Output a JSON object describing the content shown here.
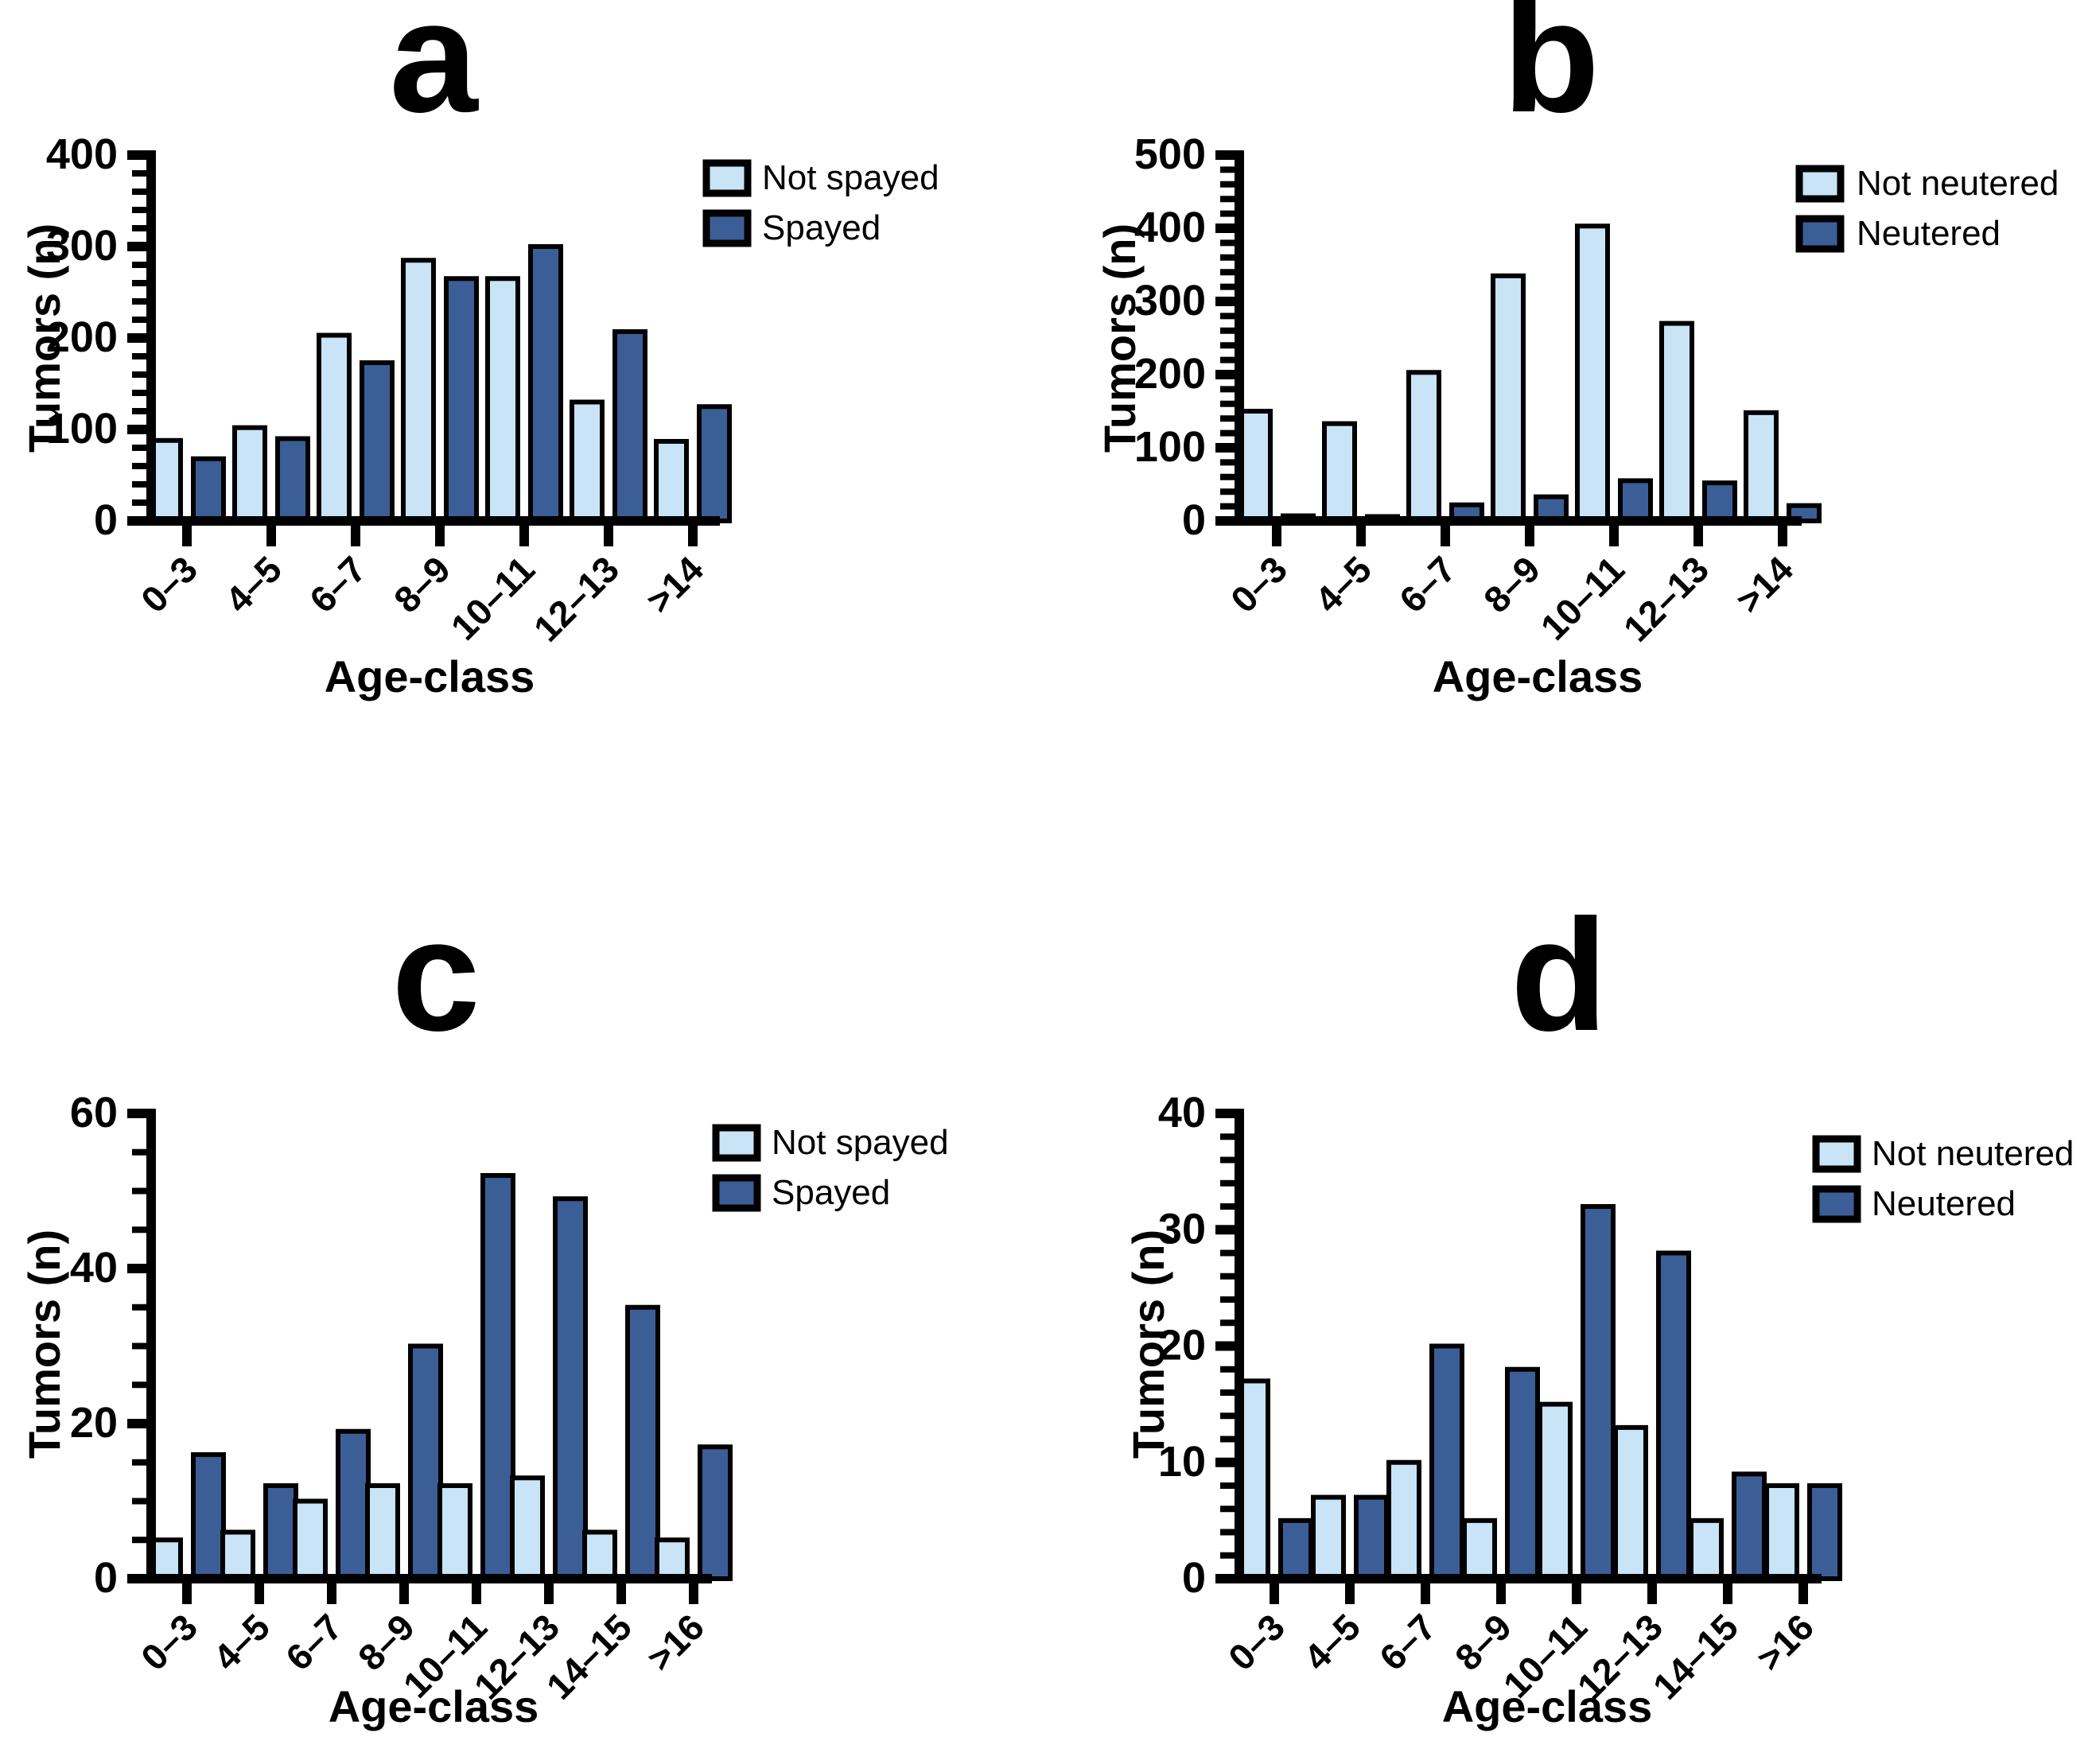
{
  "colors": {
    "not_altered_fill": "#C8E4F6",
    "altered_fill": "#3C5E97",
    "outline": "#000000",
    "background": "#FFFFFF"
  },
  "chart_data": [
    {
      "type": "bar",
      "panel": "a",
      "title": "a",
      "xlabel": "Age-class",
      "ylabel": "Tumors (n)",
      "ylim": [
        0,
        400
      ],
      "ytick_step": 100,
      "yminor_step": 20,
      "yticks": [
        0,
        100,
        200,
        300,
        400
      ],
      "grid": false,
      "legend_position": "top-right",
      "categories": [
        "0–3",
        "4–5",
        "6–7",
        "8–9",
        "10–11",
        "12–13",
        ">14"
      ],
      "series": [
        {
          "name": "Not spayed",
          "color": "light",
          "values": [
            88,
            102,
            203,
            285,
            265,
            130,
            87
          ]
        },
        {
          "name": "Spayed",
          "color": "dark",
          "values": [
            68,
            90,
            173,
            265,
            300,
            207,
            125
          ]
        }
      ]
    },
    {
      "type": "bar",
      "panel": "b",
      "title": "b",
      "xlabel": "Age-class",
      "ylabel": "Tumors (n)",
      "ylim": [
        0,
        500
      ],
      "ytick_step": 100,
      "yminor_step": 20,
      "yticks": [
        0,
        100,
        200,
        300,
        400,
        500
      ],
      "grid": false,
      "legend_position": "top-right",
      "categories": [
        "0–3",
        "4–5",
        "6–7",
        "8–9",
        "10–11",
        "12–13",
        ">14"
      ],
      "series": [
        {
          "name": "Not neutered",
          "color": "light",
          "values": [
            150,
            133,
            203,
            335,
            403,
            270,
            148
          ]
        },
        {
          "name": "Neutered",
          "color": "dark",
          "values": [
            7,
            6,
            22,
            33,
            55,
            52,
            21
          ]
        }
      ]
    },
    {
      "type": "bar",
      "panel": "c",
      "title": "c",
      "xlabel": "Age-class",
      "ylabel": "Tumors (n)",
      "ylim": [
        0,
        60
      ],
      "ytick_step": 20,
      "yminor_step": 5,
      "yticks": [
        0,
        20,
        40,
        60
      ],
      "grid": false,
      "legend_position": "top-right",
      "categories": [
        "0–3",
        "4–5",
        "6–7",
        "8–9",
        "10–11",
        "12–13",
        "14–15",
        ">16"
      ],
      "series": [
        {
          "name": "Not spayed",
          "color": "light",
          "values": [
            5,
            6,
            10,
            12,
            12,
            13,
            6,
            5
          ]
        },
        {
          "name": "Spayed",
          "color": "dark",
          "values": [
            16,
            12,
            19,
            30,
            52,
            49,
            35,
            17
          ]
        }
      ]
    },
    {
      "type": "bar",
      "panel": "d",
      "title": "d",
      "xlabel": "Age-class",
      "ylabel": "Tumors (n)",
      "ylim": [
        0,
        40
      ],
      "ytick_step": 10,
      "yminor_step": 2,
      "yticks": [
        0,
        10,
        20,
        30,
        40
      ],
      "grid": false,
      "legend_position": "top-right",
      "categories": [
        "0–3",
        "4–5",
        "6–7",
        "8–9",
        "10–11",
        "12–13",
        "14–15",
        ">16"
      ],
      "series": [
        {
          "name": "Not neutered",
          "color": "light",
          "values": [
            17,
            7,
            10,
            5,
            15,
            13,
            5,
            8
          ]
        },
        {
          "name": "Neutered",
          "color": "dark",
          "values": [
            5,
            7,
            20,
            18,
            32,
            28,
            9,
            8
          ]
        }
      ]
    }
  ]
}
